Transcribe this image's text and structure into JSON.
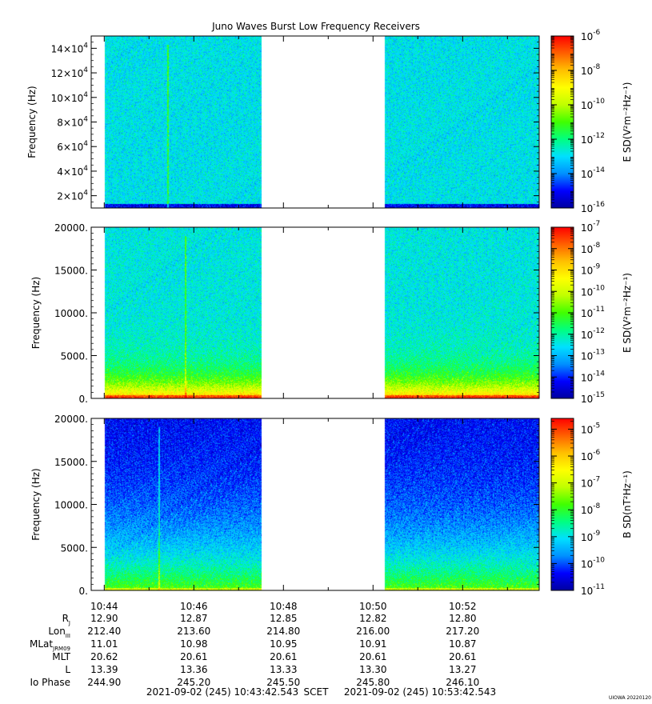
{
  "title": "Juno Waves Burst Low Frequency Receivers",
  "stamp": "UIOWA 20220120",
  "colorscale": {
    "stops": [
      "#0000a0",
      "#0000ff",
      "#0090ff",
      "#00e0ff",
      "#00ff80",
      "#40ff00",
      "#c0ff00",
      "#ffff00",
      "#ffc000",
      "#ff6000",
      "#ff0000"
    ]
  },
  "chart_data": [
    {
      "type": "heatmap",
      "name": "panel-top",
      "ylabel": "Frequency (Hz)",
      "yticks": [
        {
          "value": 20000,
          "mantissa": "2x10",
          "exp": "4"
        },
        {
          "value": 40000,
          "mantissa": "4x10",
          "exp": "4"
        },
        {
          "value": 60000,
          "mantissa": "6x10",
          "exp": "4"
        },
        {
          "value": 80000,
          "mantissa": "8x10",
          "exp": "4"
        },
        {
          "value": 100000,
          "mantissa": "10x10",
          "exp": "4"
        },
        {
          "value": 120000,
          "mantissa": "12x10",
          "exp": "4"
        },
        {
          "value": 140000,
          "mantissa": "14x10",
          "exp": "4"
        }
      ],
      "ylim": [
        10000,
        150000
      ],
      "colorbar": {
        "label": "E SD(V²m⁻²Hz⁻¹)",
        "range": [
          -16,
          -6
        ],
        "ticks": [
          {
            "exp": -6,
            "label": "-6"
          },
          {
            "exp": -8,
            "label": "-8"
          },
          {
            "exp": -10,
            "label": "-10"
          },
          {
            "exp": -12,
            "label": "-12"
          },
          {
            "exp": -14,
            "label": "-14"
          },
          {
            "exp": -16,
            "label": "-16"
          }
        ]
      },
      "level_base": 3.1,
      "level_low": 0.8,
      "line_time": "10:45:25"
    },
    {
      "type": "heatmap",
      "name": "panel-middle",
      "ylabel": "Frequency (Hz)",
      "yticks": [
        {
          "value": 0,
          "label": "0."
        },
        {
          "value": 5000,
          "label": "5000."
        },
        {
          "value": 10000,
          "label": "10000."
        },
        {
          "value": 15000,
          "label": "15000."
        },
        {
          "value": 20000,
          "label": "20000."
        }
      ],
      "ylim": [
        0,
        20000
      ],
      "colorbar": {
        "label": "E SD(V²m⁻²Hz⁻¹)",
        "range": [
          -15,
          -7
        ],
        "ticks": [
          {
            "exp": -7,
            "label": "-7"
          },
          {
            "exp": -8,
            "label": "-8"
          },
          {
            "exp": -9,
            "label": "-9"
          },
          {
            "exp": -10,
            "label": "-10"
          },
          {
            "exp": -11,
            "label": "-11"
          },
          {
            "exp": -12,
            "label": "-12"
          },
          {
            "exp": -13,
            "label": "-13"
          },
          {
            "exp": -14,
            "label": "-14"
          },
          {
            "exp": -15,
            "label": "-15"
          }
        ]
      },
      "level_base": 3.2,
      "level_low": 5.2,
      "line_time": "10:45:48"
    },
    {
      "type": "heatmap",
      "name": "panel-bottom",
      "ylabel": "Frequency (Hz)",
      "yticks": [
        {
          "value": 0,
          "label": "0."
        },
        {
          "value": 5000,
          "label": "5000."
        },
        {
          "value": 10000,
          "label": "10000."
        },
        {
          "value": 15000,
          "label": "15000."
        },
        {
          "value": 20000,
          "label": "20000."
        }
      ],
      "ylim": [
        0,
        20000
      ],
      "colorbar": {
        "label": "B SD(nT²Hz⁻¹)",
        "range": [
          -11,
          -4.6
        ],
        "ticks": [
          {
            "exp": -5,
            "label": "-5"
          },
          {
            "exp": -6,
            "label": "-6"
          },
          {
            "exp": -7,
            "label": "-7"
          },
          {
            "exp": -8,
            "label": "-8"
          },
          {
            "exp": -9,
            "label": "-9"
          },
          {
            "exp": -10,
            "label": "-10"
          },
          {
            "exp": -11,
            "label": "-11"
          }
        ]
      },
      "level_base": 0.8,
      "level_low": 4.4,
      "line_time": "10:45:13"
    }
  ],
  "time_axis": {
    "ticks": [
      "10:44",
      "10:46",
      "10:48",
      "10:50",
      "10:52"
    ],
    "start": "10:43:42.543",
    "end": "10:53:42.543",
    "data_segments": [
      [
        "10:44:00",
        "10:47:30"
      ],
      [
        "10:50:15",
        "10:53:45"
      ]
    ]
  },
  "ephemeris": {
    "rows": [
      {
        "label": "R",
        "sub": "J",
        "values": [
          "12.90",
          "12.87",
          "12.85",
          "12.82",
          "12.80"
        ]
      },
      {
        "label": "Lon",
        "sub": "III",
        "values": [
          "212.40",
          "213.60",
          "214.80",
          "216.00",
          "217.20"
        ]
      },
      {
        "label": "MLat",
        "sub": "JRM09",
        "values": [
          "11.01",
          "10.98",
          "10.95",
          "10.91",
          "10.87"
        ]
      },
      {
        "label": "MLT",
        "sub": "",
        "values": [
          "20.62",
          "20.61",
          "20.61",
          "20.61",
          "20.61"
        ]
      },
      {
        "label": "L",
        "sub": "",
        "values": [
          "13.39",
          "13.36",
          "13.33",
          "13.30",
          "13.27"
        ]
      },
      {
        "label": "Io Phase",
        "sub": "",
        "values": [
          "244.90",
          "245.20",
          "245.50",
          "245.80",
          "246.10"
        ]
      }
    ]
  },
  "footer": {
    "start_label": "2021-09-02 (245) 10:43:42.543",
    "mid_label": "SCET",
    "end_label": "2021-09-02 (245) 10:53:42.543"
  }
}
